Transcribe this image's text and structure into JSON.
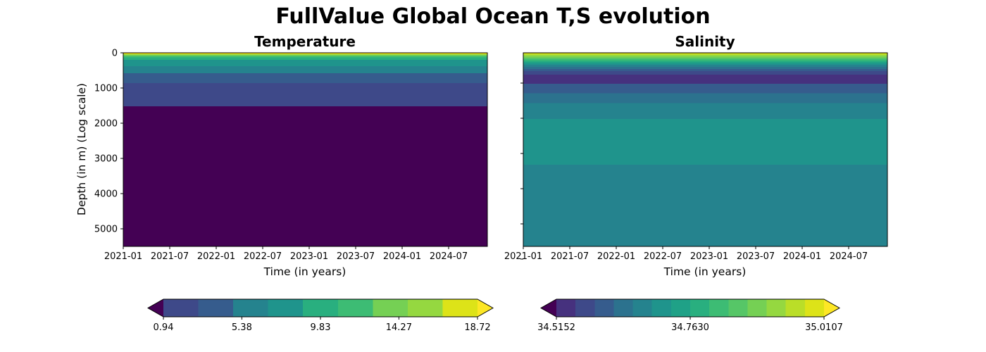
{
  "title": "FullValue Global Ocean T,S evolution",
  "chart_data": [
    {
      "type": "heatmap",
      "title": "Temperature",
      "xlabel": "Time (in years)",
      "ylabel": "Depth (in m) (Log scale)",
      "x_ticks": [
        "2021-01",
        "2021-07",
        "2022-01",
        "2022-07",
        "2023-01",
        "2023-07",
        "2024-01",
        "2024-07"
      ],
      "y_ticks": [
        0,
        1000,
        2000,
        3000,
        4000,
        5000
      ],
      "ylim": [
        5500,
        0
      ],
      "xlim": [
        "2021-01",
        "2024-12"
      ],
      "levels": [
        0.94,
        2.92,
        4.89,
        6.87,
        8.84,
        10.82,
        12.79,
        14.77,
        16.74,
        18.72
      ],
      "colorbar_ticks": [
        "0.94",
        "5.38",
        "9.83",
        "14.27",
        "18.72"
      ],
      "colorbar_extend": "both",
      "bands": [
        {
          "depth_top": 0,
          "depth_bottom": 15,
          "level": 10
        },
        {
          "depth_top": 15,
          "depth_bottom": 35,
          "level": 9
        },
        {
          "depth_top": 35,
          "depth_bottom": 60,
          "level": 8
        },
        {
          "depth_top": 60,
          "depth_bottom": 90,
          "level": 7
        },
        {
          "depth_top": 90,
          "depth_bottom": 130,
          "level": 6
        },
        {
          "depth_top": 130,
          "depth_bottom": 200,
          "level": 5
        },
        {
          "depth_top": 200,
          "depth_bottom": 380,
          "level": 4
        },
        {
          "depth_top": 380,
          "depth_bottom": 580,
          "level": 3
        },
        {
          "depth_top": 580,
          "depth_bottom": 860,
          "level": 2
        },
        {
          "depth_top": 860,
          "depth_bottom": 1520,
          "level": 1
        },
        {
          "depth_top": 1520,
          "depth_bottom": 5500,
          "level": 0
        }
      ]
    },
    {
      "type": "heatmap",
      "title": "Salinity",
      "xlabel": "Time (in years)",
      "x_ticks": [
        "2021-01",
        "2021-07",
        "2022-01",
        "2022-07",
        "2023-01",
        "2023-07",
        "2024-01",
        "2024-07"
      ],
      "ylim": [
        5500,
        0
      ],
      "xlim": [
        "2021-01",
        "2024-12"
      ],
      "levels": [
        34.5152,
        34.5514,
        34.5877,
        34.6239,
        34.6601,
        34.6963,
        34.7326,
        34.7688,
        34.805,
        34.8412,
        34.8775,
        34.9137,
        34.9499,
        34.9861,
        35.0107
      ],
      "colorbar_ticks": [
        "34.5152",
        "34.7630",
        "35.0107"
      ],
      "colorbar_extend": "both",
      "bands": [
        {
          "depth_top": 0,
          "depth_bottom": 25,
          "level": 14
        },
        {
          "depth_top": 25,
          "depth_bottom": 60,
          "level": 13
        },
        {
          "depth_top": 60,
          "depth_bottom": 100,
          "level": 12
        },
        {
          "depth_top": 100,
          "depth_bottom": 140,
          "level": 11
        },
        {
          "depth_top": 140,
          "depth_bottom": 180,
          "level": 10
        },
        {
          "depth_top": 180,
          "depth_bottom": 220,
          "level": 9
        },
        {
          "depth_top": 220,
          "depth_bottom": 260,
          "level": 8
        },
        {
          "depth_top": 260,
          "depth_bottom": 300,
          "level": 7
        },
        {
          "depth_top": 300,
          "depth_bottom": 340,
          "level": 6
        },
        {
          "depth_top": 340,
          "depth_bottom": 400,
          "level": 5
        },
        {
          "depth_top": 400,
          "depth_bottom": 460,
          "level": 4
        },
        {
          "depth_top": 460,
          "depth_bottom": 520,
          "level": 3
        },
        {
          "depth_top": 520,
          "depth_bottom": 620,
          "level": 2
        },
        {
          "depth_top": 620,
          "depth_bottom": 880,
          "level": 1
        },
        {
          "depth_top": 880,
          "depth_bottom": 1150,
          "level": 3
        },
        {
          "depth_top": 1150,
          "depth_bottom": 1430,
          "level": 4
        },
        {
          "depth_top": 1430,
          "depth_bottom": 1880,
          "level": 5
        },
        {
          "depth_top": 1880,
          "depth_bottom": 3180,
          "level": 6
        },
        {
          "depth_top": 3180,
          "depth_bottom": 5500,
          "level": 5
        }
      ]
    }
  ],
  "colors": {
    "palette": [
      "#440154",
      "#46317e",
      "#3e4989",
      "#365c8d",
      "#2c728e",
      "#25838e",
      "#1f948c",
      "#1fa187",
      "#29af7f",
      "#3dbc74",
      "#56c667",
      "#75d054",
      "#95d840",
      "#bade28",
      "#dde318",
      "#fde725"
    ]
  }
}
